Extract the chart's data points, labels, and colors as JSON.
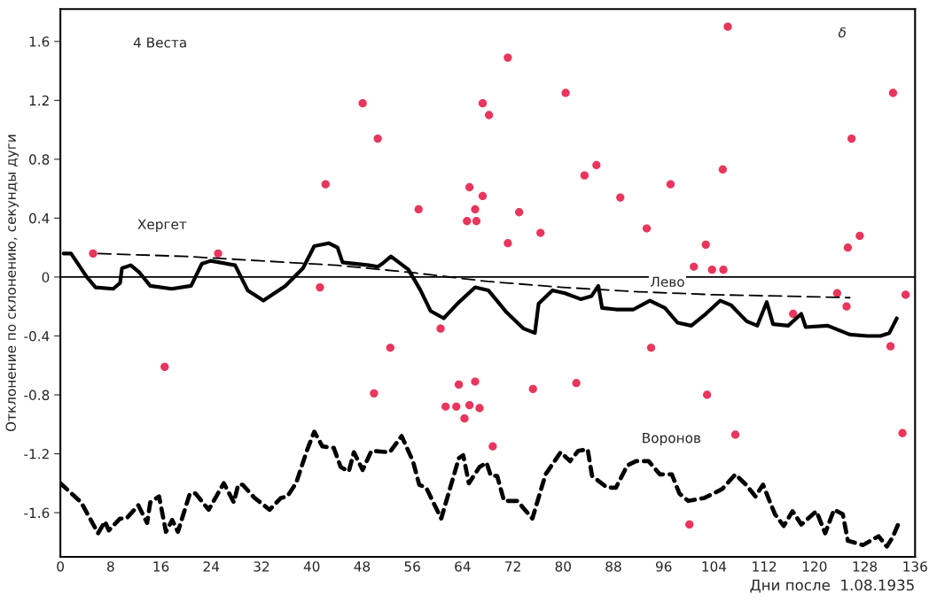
{
  "chart_data": {
    "type": "line",
    "title": "4 Веста",
    "xlabel": "Дни после  1.08.1935",
    "ylabel": "Отклонение по склонению, секунды дуги",
    "xlim": [
      0,
      136
    ],
    "xticks": [
      0,
      8,
      16,
      24,
      32,
      40,
      48,
      56,
      64,
      72,
      80,
      88,
      96,
      104,
      112,
      120,
      128,
      136
    ],
    "ylim": [
      -1.9,
      1.82
    ],
    "yticks": [
      -1.6,
      -1.2,
      -0.8,
      -0.4,
      0,
      0.4,
      0.8,
      1.2,
      1.6
    ],
    "grid": false,
    "ref_lines": [
      {
        "axis": "y",
        "value": 0,
        "color": "#000000",
        "line_style": "solid"
      }
    ],
    "annotations": [
      "δ",
      "Хергет",
      "Лево",
      "Воронов"
    ],
    "series": [
      {
        "type": "scatter",
        "color": "#e8365d",
        "marker": "circle",
        "x": [
          5.2,
          16.6,
          25.1,
          41.3,
          42.2,
          48.1,
          50.5,
          49.9,
          52.5,
          57.0,
          60.5,
          61.3,
          63.0,
          63.4,
          64.3,
          64.7,
          65.1,
          65.1,
          66.0,
          66.0,
          66.2,
          66.7,
          67.2,
          67.2,
          68.2,
          68.8,
          71.2,
          71.2,
          73.0,
          75.2,
          76.4,
          80.4,
          82.1,
          83.4,
          85.3,
          89.1,
          93.3,
          94.0,
          97.1,
          100.1,
          100.8,
          102.7,
          102.9,
          103.7,
          105.4,
          105.5,
          106.2,
          107.4,
          116.6,
          123.6,
          125.1,
          125.3,
          125.9,
          127.2,
          132.1,
          132.5,
          134.5,
          134.0
        ],
        "values": [
          0.16,
          -0.61,
          0.16,
          -0.07,
          0.63,
          1.18,
          0.94,
          -0.79,
          -0.48,
          0.46,
          -0.35,
          -0.88,
          -0.88,
          -0.73,
          -0.96,
          0.38,
          0.61,
          -0.87,
          0.46,
          -0.71,
          0.38,
          -0.89,
          1.18,
          0.55,
          1.1,
          -1.15,
          1.49,
          0.23,
          0.44,
          -0.76,
          0.3,
          1.25,
          -0.72,
          0.69,
          0.76,
          0.54,
          0.33,
          -0.48,
          0.63,
          -1.68,
          0.07,
          0.22,
          -0.8,
          0.05,
          0.73,
          0.05,
          1.7,
          -1.07,
          -0.25,
          -0.11,
          -0.2,
          0.2,
          0.94,
          0.28,
          -0.47,
          1.25,
          -0.12,
          -1.06
        ]
      },
      {
        "color": "#000000",
        "line_style": "dashed",
        "marker": "none",
        "x": [
          6,
          20,
          32,
          44,
          56,
          68,
          80,
          92,
          104,
          116,
          125.6
        ],
        "values": [
          0.16,
          0.14,
          0.11,
          0.08,
          0.03,
          -0.03,
          -0.07,
          -0.1,
          -0.12,
          -0.13,
          -0.14
        ]
      },
      {
        "color": "#000000",
        "line_style": "solid",
        "marker": "none",
        "x": [
          0.5,
          1.7,
          4.2,
          5.6,
          8.4,
          9.5,
          9.8,
          11.2,
          12.6,
          14.3,
          17.7,
          20.8,
          22.5,
          23.9,
          27.8,
          29.8,
          32.3,
          35.8,
          38.6,
          40.4,
          42.7,
          44.1,
          44.9,
          49.1,
          50.5,
          51.2,
          52.6,
          55.4,
          57.3,
          58.9,
          61.0,
          63.2,
          66.0,
          68.1,
          71.0,
          73.7,
          75.5,
          76.1,
          78.3,
          80.3,
          82.8,
          84.5,
          85.6,
          86.2,
          88.4,
          91.2,
          93.8,
          96.2,
          98.2,
          100.4,
          102.7,
          105.0,
          106.7,
          109.2,
          110.9,
          112.4,
          113.4,
          115.8,
          117.9,
          118.6,
          122.1,
          125.6,
          128.4,
          130.5,
          131.9,
          133.1
        ],
        "values": [
          0.16,
          0.16,
          0,
          -0.07,
          -0.08,
          -0.04,
          0.06,
          0.08,
          0.03,
          -0.06,
          -0.08,
          -0.06,
          0.09,
          0.11,
          0.08,
          -0.09,
          -0.16,
          -0.06,
          0.06,
          0.21,
          0.23,
          0.2,
          0.1,
          0.08,
          0.07,
          0.09,
          0.14,
          0.05,
          -0.09,
          -0.23,
          -0.28,
          -0.18,
          -0.07,
          -0.09,
          -0.24,
          -0.35,
          -0.38,
          -0.18,
          -0.09,
          -0.11,
          -0.15,
          -0.13,
          -0.06,
          -0.21,
          -0.22,
          -0.22,
          -0.16,
          -0.21,
          -0.31,
          -0.33,
          -0.25,
          -0.16,
          -0.19,
          -0.3,
          -0.33,
          -0.17,
          -0.32,
          -0.33,
          -0.25,
          -0.34,
          -0.33,
          -0.39,
          -0.4,
          -0.4,
          -0.38,
          -0.28
        ]
      },
      {
        "color": "#000000",
        "line_style": "dashed",
        "marker": "none",
        "x": [
          0,
          3.3,
          6.0,
          7.1,
          7.7,
          9.5,
          10.5,
          12.4,
          13.8,
          14.3,
          15.7,
          16.8,
          17.8,
          18.7,
          20.6,
          21.5,
          23.6,
          26.0,
          27.6,
          28.3,
          29.0,
          30.9,
          33.3,
          35.1,
          36.1,
          37.5,
          39.3,
          40.4,
          41.7,
          43.5,
          44.6,
          45.9,
          46.7,
          48.1,
          49.5,
          52.4,
          54.3,
          56.1,
          57.1,
          58.2,
          60.6,
          63.4,
          64.1,
          65.0,
          66.7,
          67.8,
          68.5,
          69.5,
          70.6,
          72.7,
          75.1,
          77.2,
          79.6,
          81.1,
          82.4,
          83.9,
          84.6,
          87.0,
          88.4,
          90.2,
          91.6,
          93.6,
          95.4,
          97.3,
          98.5,
          99.9,
          102.5,
          105.3,
          107.4,
          109.1,
          110.6,
          111.8,
          113.7,
          115.1,
          116.5,
          117.9,
          120.3,
          121.7,
          123.1,
          124.5,
          125.3,
          127.7,
          130.2,
          131.5,
          132.4,
          133.6
        ],
        "values": [
          -1.4,
          -1.53,
          -1.74,
          -1.66,
          -1.72,
          -1.64,
          -1.64,
          -1.55,
          -1.67,
          -1.53,
          -1.49,
          -1.73,
          -1.65,
          -1.73,
          -1.47,
          -1.47,
          -1.58,
          -1.4,
          -1.53,
          -1.41,
          -1.41,
          -1.5,
          -1.58,
          -1.5,
          -1.49,
          -1.4,
          -1.17,
          -1.05,
          -1.15,
          -1.16,
          -1.29,
          -1.32,
          -1.19,
          -1.31,
          -1.18,
          -1.19,
          -1.08,
          -1.25,
          -1.41,
          -1.43,
          -1.64,
          -1.23,
          -1.21,
          -1.4,
          -1.29,
          -1.26,
          -1.35,
          -1.35,
          -1.52,
          -1.52,
          -1.64,
          -1.34,
          -1.19,
          -1.25,
          -1.18,
          -1.17,
          -1.35,
          -1.43,
          -1.43,
          -1.28,
          -1.25,
          -1.25,
          -1.34,
          -1.34,
          -1.47,
          -1.52,
          -1.5,
          -1.44,
          -1.34,
          -1.41,
          -1.49,
          -1.41,
          -1.61,
          -1.69,
          -1.59,
          -1.68,
          -1.59,
          -1.74,
          -1.58,
          -1.61,
          -1.79,
          -1.82,
          -1.76,
          -1.83,
          -1.77,
          -1.65
        ]
      }
    ]
  }
}
